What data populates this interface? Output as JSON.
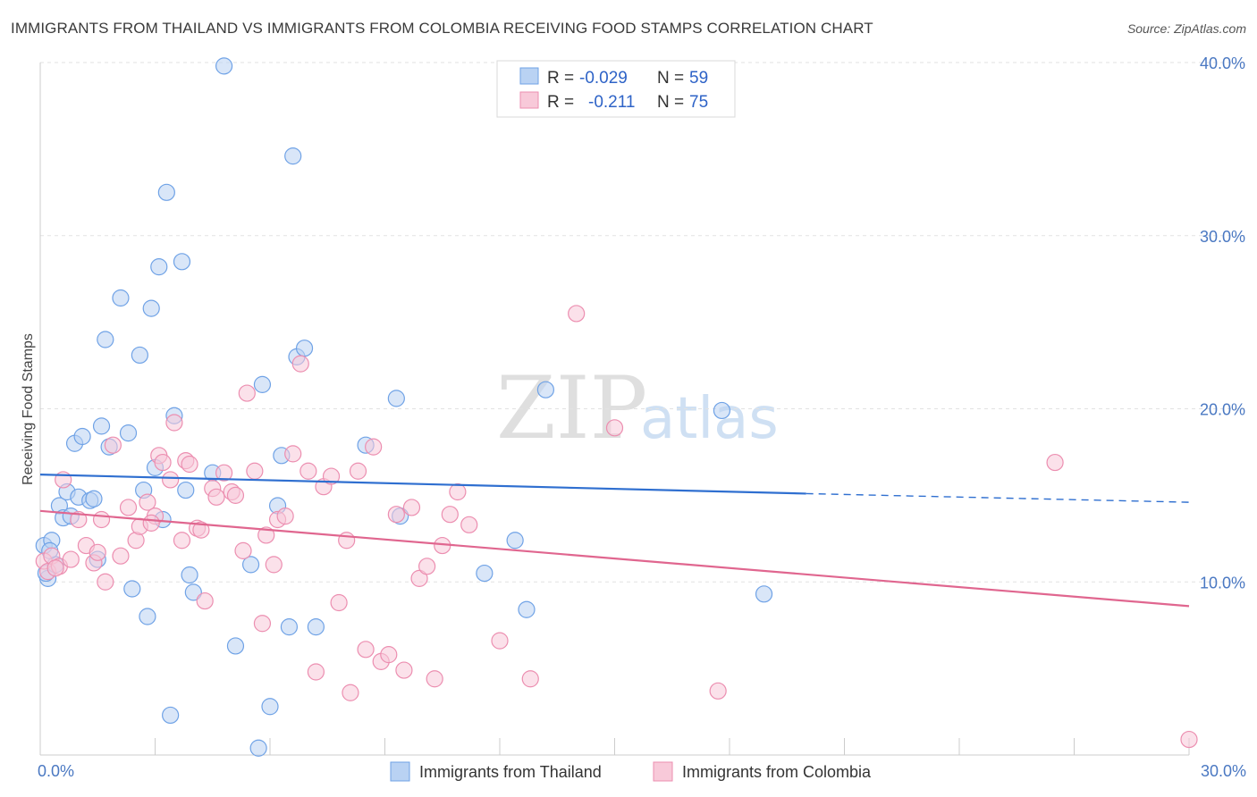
{
  "title": "IMMIGRANTS FROM THAILAND VS IMMIGRANTS FROM COLOMBIA RECEIVING FOOD STAMPS CORRELATION CHART",
  "source": "Source: ZipAtlas.com",
  "watermark": {
    "zip": "ZIP",
    "atlas": "atlas"
  },
  "chart_data": {
    "type": "scatter",
    "title": "IMMIGRANTS FROM THAILAND VS IMMIGRANTS FROM COLOMBIA RECEIVING FOOD STAMPS CORRELATION CHART",
    "xlabel": "",
    "ylabel": "Receiving Food Stamps",
    "xlim": [
      0,
      30
    ],
    "ylim": [
      0,
      40
    ],
    "x_tick_labels": {
      "left": "0.0%",
      "right": "30.0%"
    },
    "y_ticks": [
      10,
      20,
      30,
      40
    ],
    "y_tick_labels": [
      "10.0%",
      "20.0%",
      "30.0%",
      "40.0%"
    ],
    "legend_position": "top-center",
    "legend": [
      {
        "r_label": "R =",
        "r_value": "-0.029",
        "n_label": "N =",
        "n_value": "59"
      },
      {
        "r_label": "R =",
        "r_value": "-0.211",
        "n_label": "N =",
        "n_value": "75"
      }
    ],
    "series": [
      {
        "name": "Immigrants from Thailand",
        "color": "#6fa2e6",
        "fill": "#b9d2f3",
        "trend": {
          "x0": 0,
          "y0": 16.2,
          "x1": 20,
          "y1": 15.1,
          "dash_to_x": 30,
          "dash_to_y": 14.6,
          "color": "#2f6fd0"
        },
        "points": [
          [
            0.1,
            12.1
          ],
          [
            0.2,
            10.2
          ],
          [
            0.3,
            12.4
          ],
          [
            0.5,
            14.4
          ],
          [
            0.6,
            13.7
          ],
          [
            0.7,
            15.2
          ],
          [
            0.8,
            13.8
          ],
          [
            0.9,
            18.0
          ],
          [
            1.0,
            14.9
          ],
          [
            1.1,
            18.4
          ],
          [
            1.3,
            14.7
          ],
          [
            1.4,
            14.8
          ],
          [
            1.5,
            11.3
          ],
          [
            1.6,
            19.0
          ],
          [
            1.7,
            24.0
          ],
          [
            1.8,
            17.8
          ],
          [
            2.1,
            26.4
          ],
          [
            2.3,
            18.6
          ],
          [
            2.4,
            9.6
          ],
          [
            2.6,
            23.1
          ],
          [
            2.7,
            15.3
          ],
          [
            2.8,
            8.0
          ],
          [
            2.9,
            25.8
          ],
          [
            3.0,
            16.6
          ],
          [
            3.1,
            28.2
          ],
          [
            3.2,
            13.6
          ],
          [
            3.3,
            32.5
          ],
          [
            3.4,
            2.3
          ],
          [
            3.5,
            19.6
          ],
          [
            3.7,
            28.5
          ],
          [
            3.8,
            15.3
          ],
          [
            3.9,
            10.4
          ],
          [
            4.0,
            9.4
          ],
          [
            4.5,
            16.3
          ],
          [
            4.8,
            39.8
          ],
          [
            5.1,
            6.3
          ],
          [
            5.5,
            11.0
          ],
          [
            5.7,
            0.4
          ],
          [
            5.8,
            21.4
          ],
          [
            6.0,
            2.8
          ],
          [
            6.2,
            14.4
          ],
          [
            6.3,
            17.3
          ],
          [
            6.5,
            7.4
          ],
          [
            6.6,
            34.6
          ],
          [
            6.7,
            23.0
          ],
          [
            6.9,
            23.5
          ],
          [
            7.2,
            7.4
          ],
          [
            8.5,
            17.9
          ],
          [
            9.3,
            20.6
          ],
          [
            9.4,
            13.8
          ],
          [
            11.6,
            10.5
          ],
          [
            12.4,
            12.4
          ],
          [
            12.7,
            8.4
          ],
          [
            13.2,
            21.1
          ],
          [
            17.8,
            19.9
          ],
          [
            18.9,
            9.3
          ],
          [
            0.15,
            10.5
          ],
          [
            0.4,
            11.0
          ],
          [
            0.25,
            11.8
          ]
        ]
      },
      {
        "name": "Immigrants from Colombia",
        "color": "#ec8eb0",
        "fill": "#f8c9d9",
        "trend": {
          "x0": 0,
          "y0": 14.1,
          "x1": 30,
          "y1": 8.6,
          "color": "#e0668f"
        },
        "points": [
          [
            0.1,
            11.2
          ],
          [
            0.2,
            10.6
          ],
          [
            0.3,
            11.5
          ],
          [
            0.5,
            10.9
          ],
          [
            0.6,
            15.9
          ],
          [
            0.8,
            11.3
          ],
          [
            1.0,
            13.6
          ],
          [
            1.2,
            12.1
          ],
          [
            1.4,
            11.1
          ],
          [
            1.5,
            11.7
          ],
          [
            1.7,
            10.0
          ],
          [
            1.9,
            17.9
          ],
          [
            2.1,
            11.5
          ],
          [
            2.3,
            14.3
          ],
          [
            2.5,
            12.4
          ],
          [
            2.6,
            13.2
          ],
          [
            2.8,
            14.6
          ],
          [
            3.0,
            13.8
          ],
          [
            3.1,
            17.3
          ],
          [
            3.2,
            16.9
          ],
          [
            3.4,
            15.9
          ],
          [
            3.5,
            19.2
          ],
          [
            3.7,
            12.4
          ],
          [
            3.8,
            17.0
          ],
          [
            3.9,
            16.8
          ],
          [
            4.1,
            13.1
          ],
          [
            4.2,
            13.0
          ],
          [
            4.3,
            8.9
          ],
          [
            4.5,
            15.4
          ],
          [
            4.6,
            14.9
          ],
          [
            4.8,
            16.3
          ],
          [
            5.0,
            15.2
          ],
          [
            5.1,
            15.0
          ],
          [
            5.3,
            11.8
          ],
          [
            5.4,
            20.9
          ],
          [
            5.6,
            16.4
          ],
          [
            5.8,
            7.6
          ],
          [
            5.9,
            12.7
          ],
          [
            6.1,
            11.0
          ],
          [
            6.2,
            13.6
          ],
          [
            6.4,
            13.8
          ],
          [
            6.6,
            17.4
          ],
          [
            6.8,
            22.6
          ],
          [
            7.0,
            16.4
          ],
          [
            7.2,
            4.8
          ],
          [
            7.4,
            15.5
          ],
          [
            7.6,
            16.1
          ],
          [
            7.8,
            8.8
          ],
          [
            8.0,
            12.4
          ],
          [
            8.1,
            3.6
          ],
          [
            8.3,
            16.4
          ],
          [
            8.5,
            6.1
          ],
          [
            8.7,
            17.8
          ],
          [
            8.9,
            5.4
          ],
          [
            9.1,
            5.8
          ],
          [
            9.3,
            13.9
          ],
          [
            9.5,
            4.9
          ],
          [
            9.7,
            14.3
          ],
          [
            9.9,
            10.2
          ],
          [
            10.1,
            10.9
          ],
          [
            10.3,
            4.4
          ],
          [
            10.5,
            12.1
          ],
          [
            10.7,
            13.9
          ],
          [
            10.9,
            15.2
          ],
          [
            11.2,
            13.3
          ],
          [
            12.0,
            6.6
          ],
          [
            12.8,
            4.4
          ],
          [
            14.0,
            25.5
          ],
          [
            15.0,
            18.9
          ],
          [
            17.7,
            3.7
          ],
          [
            26.5,
            16.9
          ],
          [
            30.0,
            0.9
          ],
          [
            0.4,
            10.8
          ],
          [
            2.9,
            13.4
          ],
          [
            1.6,
            13.6
          ]
        ]
      }
    ]
  }
}
